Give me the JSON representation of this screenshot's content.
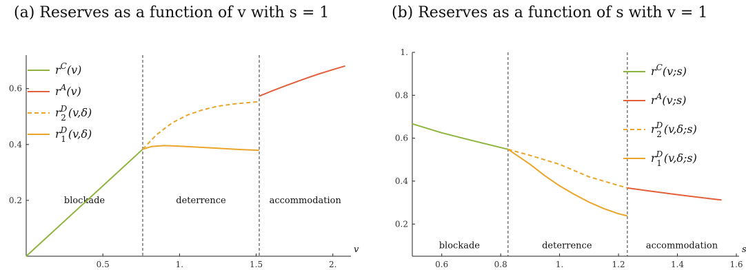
{
  "colors": {
    "c": "#8db43c",
    "a": "#e3603a",
    "d": "#eaa52a",
    "axis": "#222222"
  },
  "chart_data": [
    {
      "type": "line",
      "title": "(a) Reserves as a function of v with s = 1",
      "xlabel": "v",
      "ylabel": "",
      "xlim": [
        0.0,
        2.1
      ],
      "ylim": [
        0.0,
        0.72
      ],
      "xticks": [
        0.5,
        1.0,
        1.5,
        2.0
      ],
      "xtick_labels": [
        "0.5",
        "1.",
        "1.5",
        "2."
      ],
      "yticks": [
        0.2,
        0.4,
        0.6
      ],
      "ytick_labels": [
        "0.2",
        "0.4",
        "0.6"
      ],
      "thresholds": [
        0.76,
        1.52
      ],
      "regions": [
        {
          "label": "blockade",
          "x": 0.38,
          "y": 0.2
        },
        {
          "label": "deterrence",
          "x": 1.14,
          "y": 0.2
        },
        {
          "label": "accommodation",
          "x": 1.82,
          "y": 0.2
        }
      ],
      "legend": [
        {
          "label": "r^C(v)",
          "base": "r",
          "sup": "C",
          "sub": "",
          "args": "(v)",
          "color": "c",
          "dash": false
        },
        {
          "label": "r^A(v)",
          "base": "r",
          "sup": "A",
          "sub": "",
          "args": "(v)",
          "color": "a",
          "dash": false
        },
        {
          "label": "r_2^D(v,δ)",
          "base": "r",
          "sup": "D",
          "sub": "2",
          "args": "(v,δ)",
          "color": "d",
          "dash": true
        },
        {
          "label": "r_1^D(v,δ)",
          "base": "r",
          "sup": "D",
          "sub": "1",
          "args": "(v,δ)",
          "color": "d",
          "dash": false
        }
      ],
      "legend_placement": "top-left",
      "series": [
        {
          "name": "r^C(v)",
          "color": "c",
          "dash": false,
          "x": [
            0.0,
            0.76
          ],
          "y": [
            0.0,
            0.383
          ]
        },
        {
          "name": "r^A(v)",
          "color": "a",
          "dash": false,
          "x": [
            1.52,
            1.6,
            1.7,
            1.8,
            1.9,
            2.0,
            2.08
          ],
          "y": [
            0.573,
            0.591,
            0.612,
            0.632,
            0.651,
            0.668,
            0.681
          ]
        },
        {
          "name": "r_2^D(v,δ)",
          "color": "d",
          "dash": true,
          "x": [
            0.76,
            0.85,
            0.95,
            1.05,
            1.15,
            1.25,
            1.35,
            1.45,
            1.52
          ],
          "y": [
            0.383,
            0.435,
            0.477,
            0.505,
            0.524,
            0.537,
            0.545,
            0.55,
            0.553
          ]
        },
        {
          "name": "r_1^D(v,δ)",
          "color": "d",
          "dash": false,
          "x": [
            0.76,
            0.82,
            0.9,
            1.0,
            1.1,
            1.2,
            1.3,
            1.4,
            1.52
          ],
          "y": [
            0.383,
            0.393,
            0.396,
            0.394,
            0.391,
            0.388,
            0.385,
            0.382,
            0.379
          ]
        }
      ]
    },
    {
      "type": "line",
      "title": "(b) Reserves as a function of s with v = 1",
      "xlabel": "s",
      "ylabel": "",
      "xlim": [
        0.5,
        1.6
      ],
      "ylim": [
        0.05,
        1.0
      ],
      "xticks": [
        0.6,
        0.8,
        1.0,
        1.2,
        1.4,
        1.6
      ],
      "xtick_labels": [
        "0.6",
        "0.8",
        "1.",
        "1.2",
        "1.4",
        "1.6"
      ],
      "yticks": [
        0.2,
        0.4,
        0.6,
        0.8,
        1.0
      ],
      "ytick_labels": [
        "0.2",
        "0.4",
        "0.6",
        "0.8",
        "1."
      ],
      "thresholds": [
        0.825,
        1.23
      ],
      "regions": [
        {
          "label": "blockade",
          "x": 0.66,
          "y": 0.1
        },
        {
          "label": "deterrence",
          "x": 1.025,
          "y": 0.1
        },
        {
          "label": "accommodation",
          "x": 1.415,
          "y": 0.1
        }
      ],
      "legend": [
        {
          "label": "r^C(v;s)",
          "base": "r",
          "sup": "C",
          "sub": "",
          "args": "(v;s)",
          "color": "c",
          "dash": false
        },
        {
          "label": "r^A(v;s)",
          "base": "r",
          "sup": "A",
          "sub": "",
          "args": "(v;s)",
          "color": "a",
          "dash": false
        },
        {
          "label": "r_2^D(v,δ;s)",
          "base": "r",
          "sup": "D",
          "sub": "2",
          "args": "(v,δ;s)",
          "color": "d",
          "dash": true
        },
        {
          "label": "r_1^D(v,δ;s)",
          "base": "r",
          "sup": "D",
          "sub": "1",
          "args": "(v,δ;s)",
          "color": "d",
          "dash": false
        }
      ],
      "legend_placement": "top-right",
      "series": [
        {
          "name": "r^C(v;s)",
          "color": "c",
          "dash": false,
          "x": [
            0.5,
            0.6,
            0.7,
            0.825
          ],
          "y": [
            0.667,
            0.625,
            0.59,
            0.548
          ]
        },
        {
          "name": "r^A(v;s)",
          "color": "a",
          "dash": false,
          "x": [
            1.23,
            1.3,
            1.4,
            1.5,
            1.55
          ],
          "y": [
            0.368,
            0.355,
            0.337,
            0.32,
            0.312
          ]
        },
        {
          "name": "r_2^D(v,δ;s)",
          "color": "d",
          "dash": true,
          "x": [
            0.825,
            0.9,
            1.0,
            1.1,
            1.2,
            1.23
          ],
          "y": [
            0.548,
            0.52,
            0.478,
            0.42,
            0.38,
            0.368
          ]
        },
        {
          "name": "r_1^D(v,δ;s)",
          "color": "d",
          "dash": false,
          "x": [
            0.825,
            0.9,
            0.95,
            1.0,
            1.05,
            1.1,
            1.15,
            1.2,
            1.23
          ],
          "y": [
            0.548,
            0.478,
            0.425,
            0.378,
            0.338,
            0.302,
            0.272,
            0.248,
            0.238
          ]
        }
      ]
    }
  ]
}
